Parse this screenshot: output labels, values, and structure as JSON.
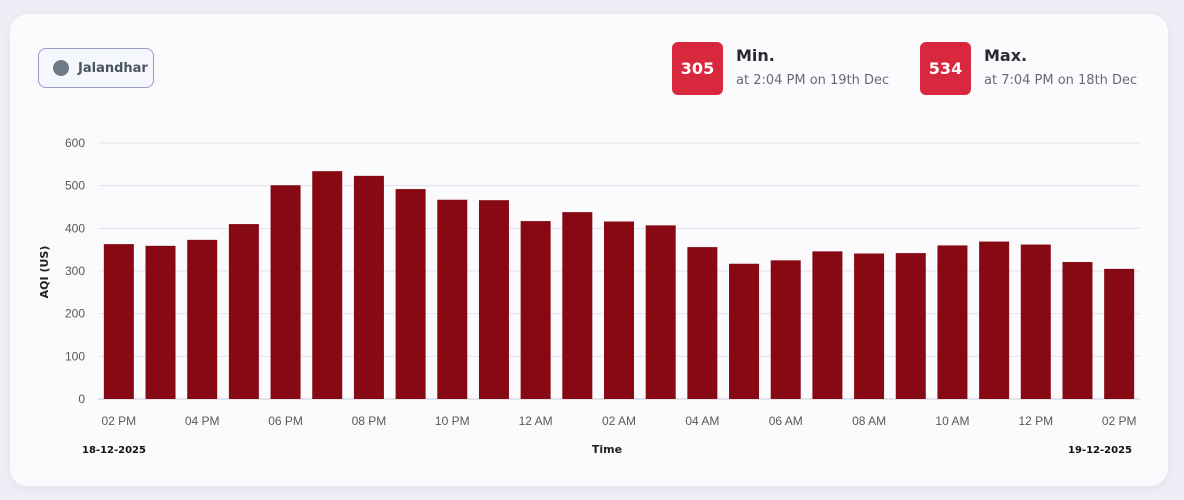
{
  "city": {
    "name": "Jalandhar"
  },
  "stats": {
    "min": {
      "value": "305",
      "label": "Min.",
      "sub": "at 2:04 PM on 19th Dec"
    },
    "max": {
      "value": "534",
      "label": "Max.",
      "sub": "at 7:04 PM on 18th Dec"
    }
  },
  "colors": {
    "bar": "#870914",
    "badge": "#d7283d",
    "grid": "#e3e3ea"
  },
  "chart_data": {
    "type": "bar",
    "ylabel": "AQI (US)",
    "xlabel": "Time",
    "ylim": [
      0,
      600
    ],
    "yticks": [
      0,
      100,
      200,
      300,
      400,
      500,
      600
    ],
    "grid": true,
    "categories": [
      "02 PM",
      "03 PM",
      "04 PM",
      "05 PM",
      "06 PM",
      "07 PM",
      "08 PM",
      "09 PM",
      "10 PM",
      "11 PM",
      "12 AM",
      "01 AM",
      "02 AM",
      "03 AM",
      "04 AM",
      "05 AM",
      "06 AM",
      "07 AM",
      "08 AM",
      "09 AM",
      "10 AM",
      "11 AM",
      "12 PM",
      "01 PM",
      "02 PM"
    ],
    "values": [
      363,
      359,
      373,
      410,
      501,
      534,
      523,
      492,
      467,
      466,
      417,
      438,
      416,
      407,
      356,
      317,
      325,
      346,
      341,
      342,
      360,
      369,
      362,
      321,
      305
    ],
    "xtick_labels": [
      "02 PM",
      "04 PM",
      "06 PM",
      "08 PM",
      "10 PM",
      "12 AM",
      "02 AM",
      "04 AM",
      "06 AM",
      "08 AM",
      "10 AM",
      "12 PM",
      "02 PM"
    ],
    "start_date": "18-12-2025",
    "end_date": "19-12-2025"
  }
}
